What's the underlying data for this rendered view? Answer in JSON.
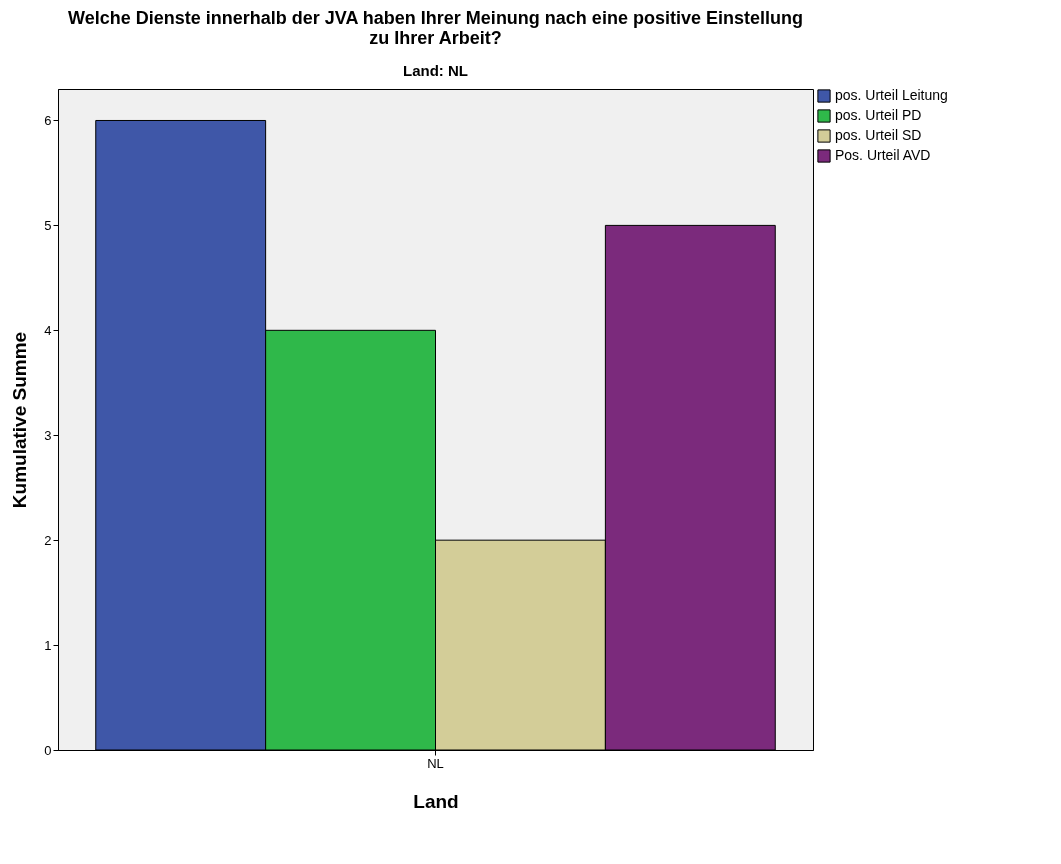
{
  "chart_data": {
    "type": "bar",
    "title": "Welche Dienste innerhalb der JVA haben Ihrer Meinung nach eine positive Einstellung zu Ihrer Arbeit?",
    "subtitle": "Land: NL",
    "xlabel": "Land",
    "ylabel": "Kumulative Summe",
    "categories": [
      "NL"
    ],
    "series": [
      {
        "name": "pos. Urteil Leitung",
        "color": "#3f57a8",
        "values": [
          6
        ]
      },
      {
        "name": "pos. Urteil PD",
        "color": "#2fb84a",
        "values": [
          4
        ]
      },
      {
        "name": "pos. Urteil SD",
        "color": "#d3cd98",
        "values": [
          2
        ]
      },
      {
        "name": "Pos. Urteil AVD",
        "color": "#7b2a7c",
        "values": [
          5
        ]
      }
    ],
    "ylim": [
      0,
      6.3
    ],
    "yticks": [
      0,
      1,
      2,
      3,
      4,
      5,
      6
    ],
    "grid": false,
    "legend": "top right"
  }
}
